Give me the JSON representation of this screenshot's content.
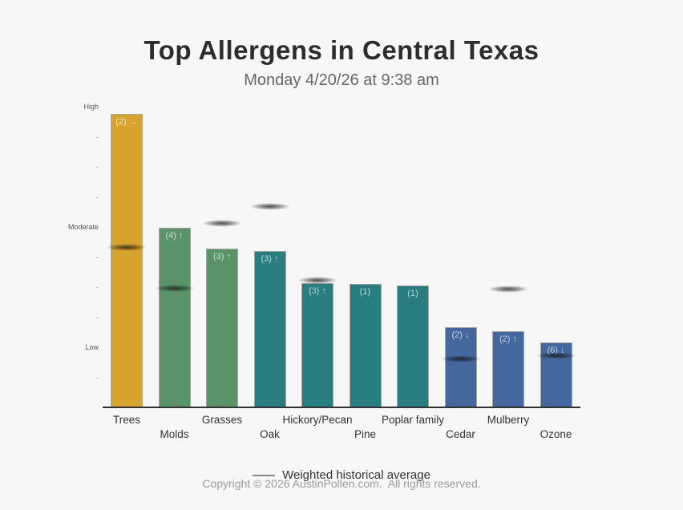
{
  "header": {
    "title": "Top Allergens in Central Texas",
    "subtitle": "Monday 4/20/26 at 9:38 am"
  },
  "chart_data": {
    "type": "bar",
    "title": "Top Allergens in Central Texas",
    "subtitle": "Monday 4/20/26 at 9:38 am",
    "ylim": [
      0,
      10.5
    ],
    "grid": false,
    "y_ticks": [
      {
        "level": 10,
        "label": "High"
      },
      {
        "level": 9,
        "label": "-"
      },
      {
        "level": 8,
        "label": "-"
      },
      {
        "level": 7,
        "label": "-"
      },
      {
        "level": 6,
        "label": "Moderate"
      },
      {
        "level": 5,
        "label": "-"
      },
      {
        "level": 4,
        "label": "-"
      },
      {
        "level": 3,
        "label": "-"
      },
      {
        "level": 2,
        "label": "Low"
      },
      {
        "level": 1,
        "label": "-"
      }
    ],
    "categories": [
      "Trees",
      "Molds",
      "Grasses",
      "Oak",
      "Hickory/Pecan",
      "Pine",
      "Poplar family",
      "Cedar",
      "Mulberry",
      "Ozone"
    ],
    "bars": [
      {
        "category": "Trees",
        "value": 9.8,
        "label": "(2) →",
        "color": "#d6a42e",
        "avg": 5.35
      },
      {
        "category": "Molds",
        "value": 6.0,
        "label": "(4) ↑",
        "color": "#5a9367",
        "avg": 4.0
      },
      {
        "category": "Grasses",
        "value": 5.3,
        "label": "(3) ↑",
        "color": "#5a9367",
        "avg": 6.15
      },
      {
        "category": "Oak",
        "value": 5.23,
        "label": "(3) ↑",
        "color": "#2a7d7e",
        "avg": 6.7
      },
      {
        "category": "Hickory/Pecan",
        "value": 4.15,
        "label": "(3) ↑",
        "color": "#2a7d7e",
        "avg": 4.25
      },
      {
        "category": "Pine",
        "value": 4.13,
        "label": "(1)",
        "color": "#2a7d7e",
        "avg": null
      },
      {
        "category": "Poplar family",
        "value": 4.08,
        "label": "(1)",
        "color": "#2a7d7e",
        "avg": null
      },
      {
        "category": "Cedar",
        "value": 2.7,
        "label": "(2) ↓",
        "color": "#44689d",
        "avg": 1.65
      },
      {
        "category": "Mulberry",
        "value": 2.55,
        "label": "(2) ↑",
        "color": "#44689d",
        "avg": 3.95
      },
      {
        "category": "Ozone",
        "value": 2.2,
        "label": "(6) ↓",
        "color": "#44689d",
        "avg": 1.75
      }
    ],
    "legend": {
      "marker": "line",
      "position": "bottom-center",
      "label": "Weighted historical average"
    }
  },
  "legend": {
    "label": "Weighted historical average"
  },
  "footer": {
    "copyright": "Copyright © 2026 AustinPollen.com.  All rights reserved."
  }
}
